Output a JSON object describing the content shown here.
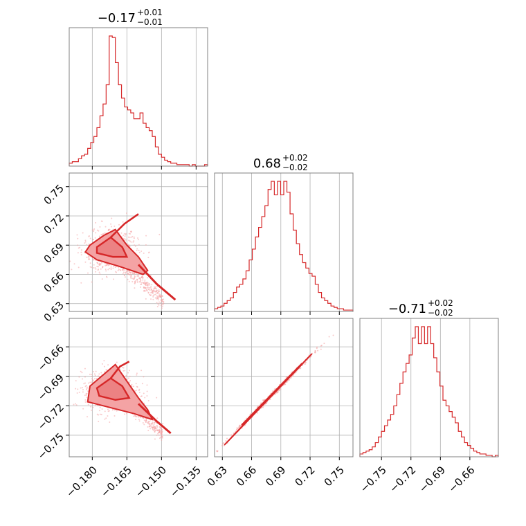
{
  "colors": {
    "accent": "#d62728",
    "fill": "#f4a3a4",
    "grid": "#b0b0b0",
    "frame": "#808080"
  },
  "chart_data": {
    "type": "corner",
    "grid": true,
    "parameters": [
      {
        "title": {
          "median": "−0.17",
          "plus": "+0.01",
          "minus": "−0.01"
        },
        "range": [
          -0.19,
          -0.13
        ],
        "ticks": [
          -0.18,
          -0.165,
          -0.15,
          -0.135
        ],
        "tick_labels": [
          "−0.180",
          "−0.165",
          "−0.150",
          "−0.135"
        ]
      },
      {
        "title": {
          "median": "0.68",
          "plus": "+0.02",
          "minus": "−0.02"
        },
        "range": [
          0.622,
          0.764
        ],
        "ticks": [
          0.63,
          0.66,
          0.69,
          0.72,
          0.75
        ],
        "tick_labels": [
          "0.63",
          "0.66",
          "0.69",
          "0.72",
          "0.75"
        ]
      },
      {
        "title": {
          "median": "−0.71",
          "plus": "+0.02",
          "minus": "−0.02"
        },
        "range": [
          -0.772,
          -0.631
        ],
        "ticks": [
          -0.75,
          -0.72,
          -0.69,
          -0.66
        ],
        "tick_labels": [
          "−0.75",
          "−0.72",
          "−0.69",
          "−0.66"
        ]
      }
    ],
    "histograms": [
      {
        "param": 0,
        "counts": [
          2,
          3,
          3,
          5,
          7,
          8,
          12,
          16,
          20,
          26,
          34,
          42,
          55,
          88,
          87,
          70,
          55,
          46,
          40,
          38,
          36,
          32,
          32,
          36,
          29,
          26,
          24,
          20,
          13,
          8,
          6,
          4,
          3,
          2,
          2,
          1,
          1,
          1,
          1,
          0,
          1,
          0,
          0,
          0,
          1
        ]
      },
      {
        "param": 1,
        "counts": [
          2,
          3,
          4,
          6,
          8,
          10,
          14,
          18,
          20,
          24,
          30,
          38,
          46,
          55,
          62,
          70,
          78,
          90,
          96,
          86,
          96,
          86,
          96,
          88,
          72,
          60,
          50,
          42,
          36,
          32,
          28,
          26,
          20,
          14,
          10,
          8,
          6,
          4,
          3,
          2,
          2,
          1,
          1,
          1
        ]
      },
      {
        "param": 2,
        "counts": [
          2,
          3,
          4,
          5,
          7,
          10,
          14,
          18,
          22,
          26,
          30,
          36,
          44,
          52,
          60,
          66,
          72,
          84,
          92,
          80,
          92,
          80,
          92,
          80,
          70,
          60,
          50,
          40,
          36,
          32,
          28,
          24,
          18,
          14,
          10,
          8,
          6,
          4,
          3,
          2,
          2,
          1,
          1,
          0,
          1
        ]
      }
    ],
    "scatter_panels": [
      {
        "x_param": 0,
        "y_param": 1,
        "kind": "cloud"
      },
      {
        "x_param": 0,
        "y_param": 2,
        "kind": "cloud"
      },
      {
        "x_param": 1,
        "y_param": 2,
        "kind": "linear"
      }
    ]
  }
}
